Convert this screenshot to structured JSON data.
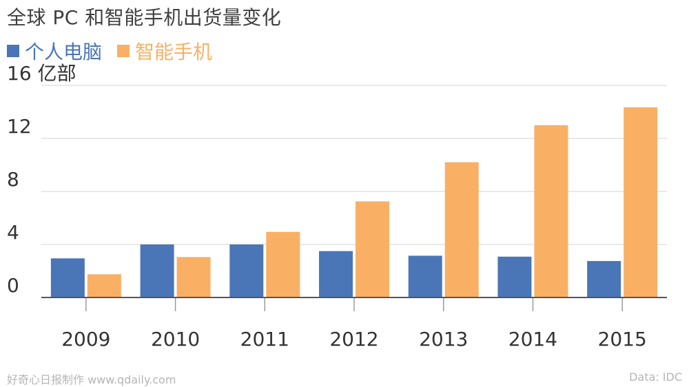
{
  "title": "全球 PC 和智能手机出货量变化",
  "footer": {
    "credit": "好奇心日报制作 www.qdaily.com",
    "source": "Data: IDC"
  },
  "colors": {
    "pc": "#4a76b8",
    "phone": "#f9b064",
    "grid": "#e2e2e2",
    "axis": "#555555",
    "text": "#333333"
  },
  "chart_data": {
    "type": "bar",
    "title": "全球 PC 和智能手机出货量变化",
    "categories": [
      "2009",
      "2010",
      "2011",
      "2012",
      "2013",
      "2014",
      "2015"
    ],
    "series": [
      {
        "name": "个人电脑",
        "values": [
          2.95,
          4.0,
          4.0,
          3.5,
          3.15,
          3.08,
          2.75
        ]
      },
      {
        "name": "智能手机",
        "values": [
          1.75,
          3.05,
          4.95,
          7.25,
          10.2,
          13.0,
          14.35
        ]
      }
    ],
    "unit": "亿部",
    "yticks": [
      0,
      4,
      8,
      12,
      16
    ],
    "ytick_labels": [
      "0",
      "4",
      "8",
      "12",
      "16 亿部"
    ],
    "ylim": [
      0,
      16
    ],
    "grid": true,
    "legend_position": "top-left"
  }
}
